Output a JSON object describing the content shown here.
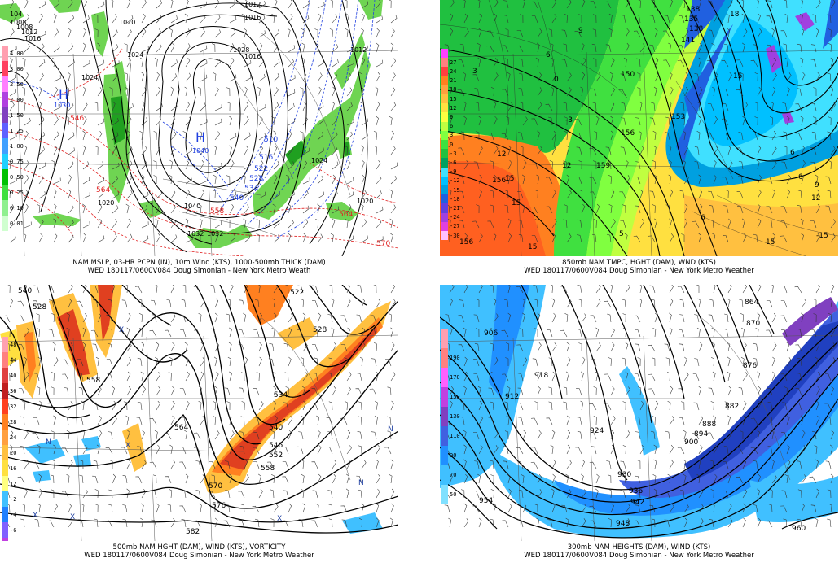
{
  "panels": [
    {
      "id": "mslp",
      "caption_line1": "NAM MSLP, 03-HR PCPN (IN), 10m Wind (KTS), 1000-500mb THICK (DAM)",
      "caption_line2": "WED 180117/0600V084 Doug Simonian - New York Metro Weath",
      "legend": [
        {
          "label": "4.00",
          "color": "#ff9fb0"
        },
        {
          "label": "3.00",
          "color": "#ff4060"
        },
        {
          "label": "2.50",
          "color": "#ff80ff"
        },
        {
          "label": "2.00",
          "color": "#b040e0"
        },
        {
          "label": "1.50",
          "color": "#8040c0"
        },
        {
          "label": "1.25",
          "color": "#6060ff"
        },
        {
          "label": "1.00",
          "color": "#40a0ff"
        },
        {
          "label": "0.75",
          "color": "#20d0ff"
        },
        {
          "label": "0.50",
          "color": "#00c000"
        },
        {
          "label": "0.25",
          "color": "#40e040"
        },
        {
          "label": "0.10",
          "color": "#90f090"
        },
        {
          "label": "0.01",
          "color": "#d0ffd0"
        }
      ],
      "isobar_labels": [
        "1012",
        "1016",
        "1020",
        "1024",
        "1028",
        "1024",
        "1020",
        "1040",
        "1032",
        "1032",
        "1024",
        "1020",
        "1008",
        "1012",
        "1016"
      ],
      "thickness_labels": [
        "546",
        "564",
        "558",
        "564",
        "570",
        "510",
        "516",
        "522",
        "528",
        "534",
        "540"
      ],
      "pressure_centers": [
        {
          "letter": "H",
          "value": "1030"
        },
        {
          "letter": "H",
          "value": "1040"
        }
      ],
      "edge_labels": [
        "104",
        "1008",
        "1012",
        "1016"
      ]
    },
    {
      "id": "t850",
      "caption_line1": "850mb NAM TMPC, HGHT (DAM), WND (KTS)",
      "caption_line2": "WED 180117/0600V084 Doug Simonian - New York Metro Weather",
      "legend": [
        {
          "label": "",
          "color": "#ff40ff"
        },
        {
          "label": "27",
          "color": "#ff8080"
        },
        {
          "label": "24",
          "color": "#ff4040"
        },
        {
          "label": "21",
          "color": "#ff8020"
        },
        {
          "label": "18",
          "color": "#ffa040"
        },
        {
          "label": "15",
          "color": "#ffc040"
        },
        {
          "label": "12",
          "color": "#ffe040"
        },
        {
          "label": "9",
          "color": "#ffff40"
        },
        {
          "label": "6",
          "color": "#c0ff40"
        },
        {
          "label": "3",
          "color": "#80ff40"
        },
        {
          "label": "0",
          "color": "#40e040"
        },
        {
          "label": "-3",
          "color": "#20c040"
        },
        {
          "label": "-6",
          "color": "#00a060"
        },
        {
          "label": "-9",
          "color": "#40e0ff"
        },
        {
          "label": "-12",
          "color": "#00c0ff"
        },
        {
          "label": "-15",
          "color": "#00a0e0"
        },
        {
          "label": "-18",
          "color": "#2060e0"
        },
        {
          "label": "-21",
          "color": "#6040e0"
        },
        {
          "label": "-24",
          "color": "#a040e0"
        },
        {
          "label": "-27",
          "color": "#e040e0"
        },
        {
          "label": "-30",
          "color": "#ffc0ff"
        }
      ],
      "height_labels": [
        "138",
        "135",
        "138",
        "141",
        "150",
        "153",
        "156",
        "159",
        "156"
      ],
      "temp_labels": [
        "18",
        "15",
        "12",
        "9",
        "6",
        "3",
        "0",
        "-3",
        "15",
        "12",
        "15",
        "6",
        "9",
        "12",
        "15",
        "6",
        "6",
        "5",
        "15",
        "-15",
        "156"
      ]
    },
    {
      "id": "h500",
      "caption_line1": "500mb NAM HGHT (DAM), WIND (KTS), VORTICITY",
      "caption_line2": "WED 180117/0600V084 Doug Simonian - New York Metro Weather",
      "legend": [
        {
          "label": "48",
          "color": "#ffa0b0"
        },
        {
          "label": "44",
          "color": "#ff8080"
        },
        {
          "label": "40",
          "color": "#e04040"
        },
        {
          "label": "36",
          "color": "#c02020"
        },
        {
          "label": "32",
          "color": "#ff4020"
        },
        {
          "label": "28",
          "color": "#ff8020"
        },
        {
          "label": "24",
          "color": "#ffa040"
        },
        {
          "label": "20",
          "color": "#ffc040"
        },
        {
          "label": "16",
          "color": "#ffe040"
        },
        {
          "label": "12",
          "color": "#ffff80"
        },
        {
          "label": "-2",
          "color": "#40c0ff"
        },
        {
          "label": "-4",
          "color": "#2080ff"
        },
        {
          "label": "-6",
          "color": "#8060ff"
        },
        {
          "label": "-8",
          "color": "#c040e0"
        }
      ],
      "height_labels": [
        "540",
        "528",
        "558",
        "564",
        "570",
        "576",
        "582",
        "522",
        "528",
        "534",
        "540",
        "546",
        "552",
        "558"
      ],
      "markers": [
        "N",
        "X",
        "X",
        "X",
        "N",
        "X",
        "N",
        "X"
      ]
    },
    {
      "id": "h300",
      "caption_line1": "300mb NAM HEIGHTS (DAM), WIND (KTS)",
      "caption_line2": "WED 180117/0600V084 Doug Simonian - New York Metro Weather",
      "legend": [
        {
          "label": "",
          "color": "#ff9fb0"
        },
        {
          "label": "190",
          "color": "#ff8080"
        },
        {
          "label": "170",
          "color": "#ff60ff"
        },
        {
          "label": "150",
          "color": "#c040e0"
        },
        {
          "label": "130",
          "color": "#8040c0"
        },
        {
          "label": "110",
          "color": "#4060e0"
        },
        {
          "label": "90",
          "color": "#2090ff"
        },
        {
          "label": "70",
          "color": "#40c0ff"
        },
        {
          "label": "50",
          "color": "#80e0ff"
        }
      ],
      "height_labels": [
        "864",
        "870",
        "876",
        "882",
        "888",
        "894",
        "900",
        "906",
        "912",
        "918",
        "924",
        "930",
        "936",
        "942",
        "948",
        "954",
        "960"
      ]
    }
  ]
}
